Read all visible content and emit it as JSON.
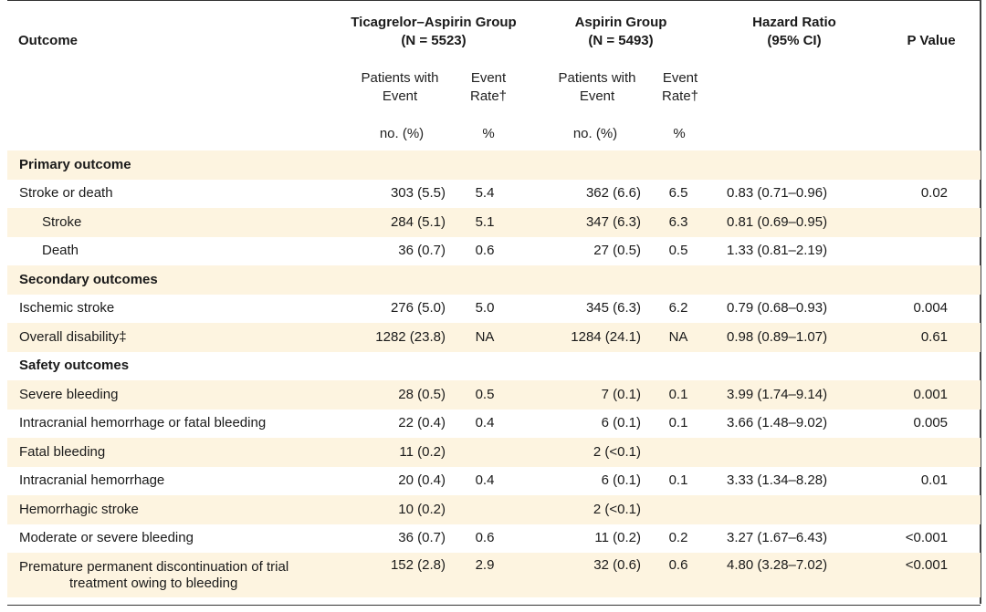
{
  "header": {
    "outcome": "Outcome",
    "group1_title": "Ticagrelor–Aspirin Group",
    "group1_n": "(N = 5523)",
    "group2_title": "Aspirin Group",
    "group2_n": "(N = 5493)",
    "hr_title": "Hazard Ratio",
    "hr_ci": "(95% CI)",
    "p_title": "P Value",
    "patients_line1": "Patients with",
    "patients_line2": "Event",
    "rate_line1": "Event",
    "rate_line2": "Rate†",
    "units_count": "no. (%)",
    "units_rate": "%"
  },
  "rows": [
    {
      "label": "Primary outcome"
    },
    {
      "label": "Stroke or death",
      "g1n": "303 (5.5)",
      "g1r": "5.4",
      "g2n": "362 (6.6)",
      "g2r": "6.5",
      "hr": "0.83 (0.71–0.96)",
      "p": "0.02"
    },
    {
      "label": "Stroke",
      "g1n": "284 (5.1)",
      "g1r": "5.1",
      "g2n": "347 (6.3)",
      "g2r": "6.3",
      "hr": "0.81 (0.69–0.95)",
      "p": ""
    },
    {
      "label": "Death",
      "g1n": "36 (0.7)",
      "g1r": "0.6",
      "g2n": "27 (0.5)",
      "g2r": "0.5",
      "hr": "1.33 (0.81–2.19)",
      "p": ""
    },
    {
      "label": "Secondary outcomes"
    },
    {
      "label": "Ischemic stroke",
      "g1n": "276 (5.0)",
      "g1r": "5.0",
      "g2n": "345 (6.3)",
      "g2r": "6.2",
      "hr": "0.79 (0.68–0.93)",
      "p": "0.004"
    },
    {
      "label": "Overall disability‡",
      "g1n": "1282 (23.8)",
      "g1r": "NA",
      "g2n": "1284 (24.1)",
      "g2r": "NA",
      "hr": "0.98 (0.89–1.07)",
      "p": "0.61"
    },
    {
      "label": "Safety outcomes"
    },
    {
      "label": "Severe bleeding",
      "g1n": "28 (0.5)",
      "g1r": "0.5",
      "g2n": "7 (0.1)",
      "g2r": "0.1",
      "hr": "3.99 (1.74–9.14)",
      "p": "0.001"
    },
    {
      "label": "Intracranial hemorrhage or fatal bleeding",
      "g1n": "22 (0.4)",
      "g1r": "0.4",
      "g2n": "6 (0.1)",
      "g2r": "0.1",
      "hr": "3.66 (1.48–9.02)",
      "p": "0.005"
    },
    {
      "label": "Fatal bleeding",
      "g1n": "11 (0.2)",
      "g1r": "",
      "g2n": "2 (<0.1)",
      "g2r": "",
      "hr": "",
      "p": ""
    },
    {
      "label": "Intracranial hemorrhage",
      "g1n": "20 (0.4)",
      "g1r": "0.4",
      "g2n": "6 (0.1)",
      "g2r": "0.1",
      "hr": "3.33 (1.34–8.28)",
      "p": "0.01"
    },
    {
      "label": "Hemorrhagic stroke",
      "g1n": "10 (0.2)",
      "g1r": "",
      "g2n": "2 (<0.1)",
      "g2r": "",
      "hr": "",
      "p": ""
    },
    {
      "label": "Moderate or severe bleeding",
      "g1n": "36 (0.7)",
      "g1r": "0.6",
      "g2n": "11 (0.2)",
      "g2r": "0.2",
      "hr": "3.27 (1.67–6.43)",
      "p": "<0.001"
    },
    {
      "label_line1": "Premature permanent discontinuation of trial",
      "label_line2": "treatment owing to bleeding",
      "g1n": "152 (2.8)",
      "g1r": "2.9",
      "g2n": "32 (0.6)",
      "g2r": "0.6",
      "hr": "4.80 (3.28–7.02)",
      "p": "<0.001"
    }
  ]
}
